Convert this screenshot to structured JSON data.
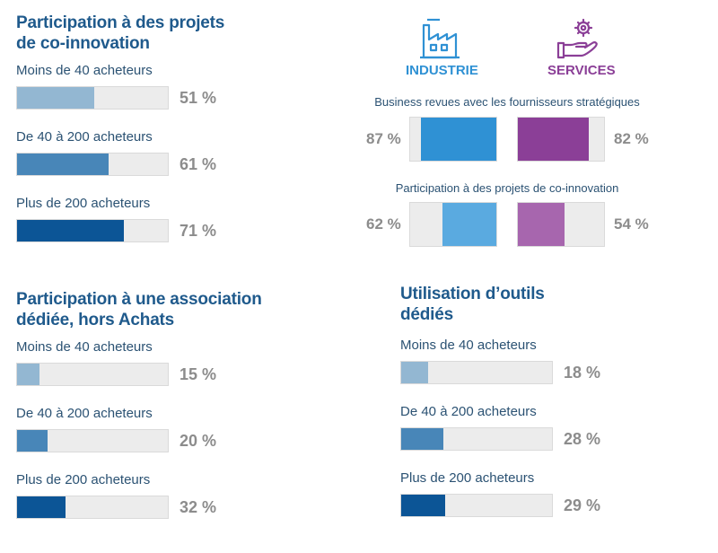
{
  "colors": {
    "title": "#1f5a8c",
    "tier_1": "#93b7d2",
    "tier_2": "#4886b8",
    "tier_3": "#0c5596",
    "industry": "#2f91d4",
    "industry_light": "#5aaae0",
    "services": "#8b3f97",
    "services_light": "#a766ae",
    "industry_label": "#2f91d4",
    "services_label": "#8b3f97"
  },
  "icons": {
    "industry": "factory-icon",
    "services": "hand-gear-icon"
  },
  "chart_data": [
    {
      "type": "bar",
      "orientation": "horizontal",
      "title": "Participation à des projets de co-innovation",
      "categories": [
        "Moins de 40 acheteurs",
        "De 40 à 200 acheteurs",
        "Plus de 200 acheteurs"
      ],
      "values": [
        51,
        61,
        71
      ],
      "value_labels": [
        "51 %",
        "61 %",
        "71 %"
      ],
      "xlim": [
        0,
        100
      ]
    },
    {
      "type": "bar",
      "orientation": "horizontal",
      "title": "Participation à une association dédiée, hors Achats",
      "categories": [
        "Moins de 40 acheteurs",
        "De 40 à 200 acheteurs",
        "Plus de 200 acheteurs"
      ],
      "values": [
        15,
        20,
        32
      ],
      "value_labels": [
        "15 %",
        "20 %",
        "32 %"
      ],
      "xlim": [
        0,
        100
      ]
    },
    {
      "type": "bar",
      "orientation": "horizontal",
      "title": "Utilisation d’outils dédiés",
      "categories": [
        "Moins de 40 acheteurs",
        "De 40 à 200 acheteurs",
        "Plus de 200 acheteurs"
      ],
      "values": [
        18,
        28,
        29
      ],
      "value_labels": [
        "18 %",
        "28 %",
        "29 %"
      ],
      "xlim": [
        0,
        100
      ]
    },
    {
      "type": "bar",
      "orientation": "horizontal",
      "legend": [
        "INDUSTRIE",
        "SERVICES"
      ],
      "groups": [
        {
          "title": "Business revues avec les fournisseurs stratégiques",
          "values": {
            "INDUSTRIE": 87,
            "SERVICES": 82
          },
          "value_labels": {
            "INDUSTRIE": "87 %",
            "SERVICES": "82 %"
          }
        },
        {
          "title": "Participation à des projets de co-innovation",
          "values": {
            "INDUSTRIE": 62,
            "SERVICES": 54
          },
          "value_labels": {
            "INDUSTRIE": "62 %",
            "SERVICES": "54 %"
          }
        }
      ],
      "xlim": [
        0,
        100
      ]
    }
  ]
}
